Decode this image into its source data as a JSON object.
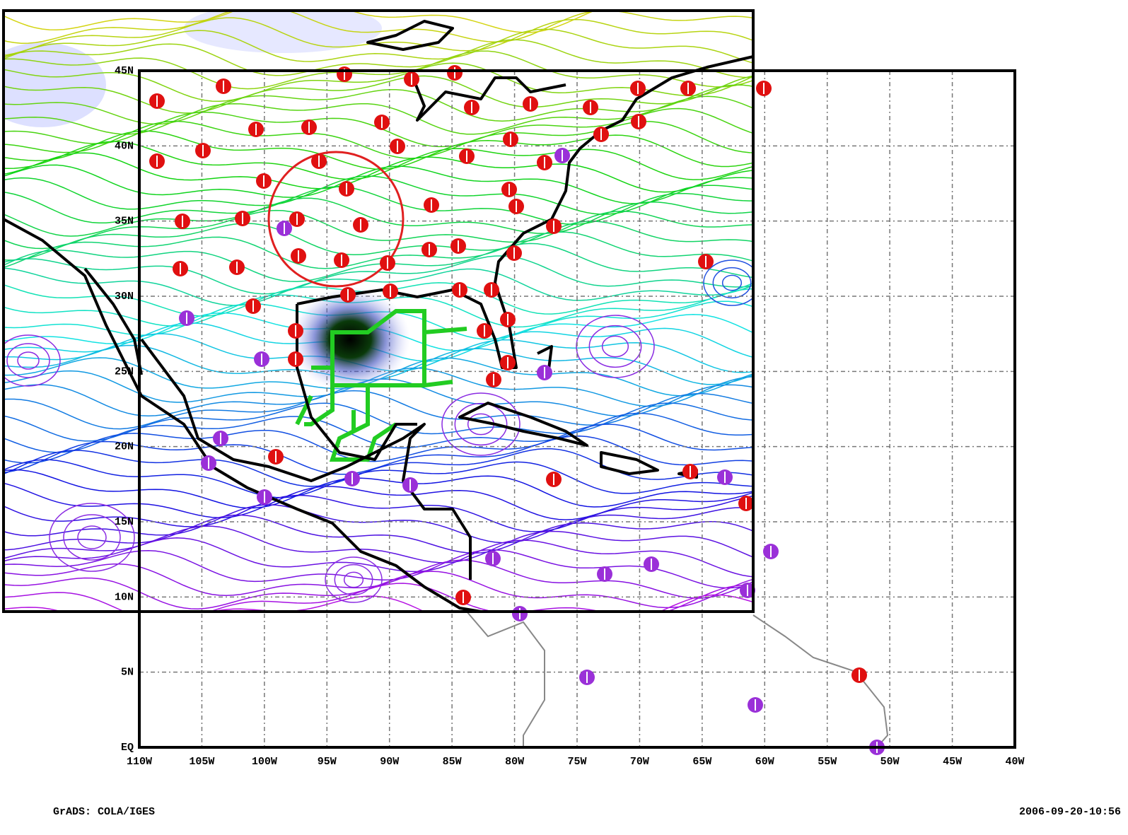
{
  "map": {
    "lon_ticks": [
      {
        "value": -110,
        "label": "110W"
      },
      {
        "value": -105,
        "label": "105W"
      },
      {
        "value": -100,
        "label": "100W"
      },
      {
        "value": -95,
        "label": "95W"
      },
      {
        "value": -90,
        "label": "90W"
      },
      {
        "value": -85,
        "label": "85W"
      },
      {
        "value": -80,
        "label": "80W"
      },
      {
        "value": -75,
        "label": "75W"
      },
      {
        "value": -70,
        "label": "70W"
      },
      {
        "value": -65,
        "label": "65W"
      },
      {
        "value": -60,
        "label": "60W"
      },
      {
        "value": -55,
        "label": "55W"
      },
      {
        "value": -50,
        "label": "50W"
      },
      {
        "value": -45,
        "label": "45W"
      },
      {
        "value": -40,
        "label": "40W"
      }
    ],
    "lat_ticks": [
      {
        "value": 0,
        "label": "EQ"
      },
      {
        "value": 5,
        "label": "5N"
      },
      {
        "value": 10,
        "label": "10N"
      },
      {
        "value": 15,
        "label": "15N"
      },
      {
        "value": 20,
        "label": "20N"
      },
      {
        "value": 25,
        "label": "25N"
      },
      {
        "value": 30,
        "label": "30N"
      },
      {
        "value": 35,
        "label": "35N"
      },
      {
        "value": 40,
        "label": "40N"
      },
      {
        "value": 45,
        "label": "45N"
      }
    ],
    "footer_left": "GrADS: COLA/IGES",
    "footer_right": "2006-09-20-10:56"
  }
}
